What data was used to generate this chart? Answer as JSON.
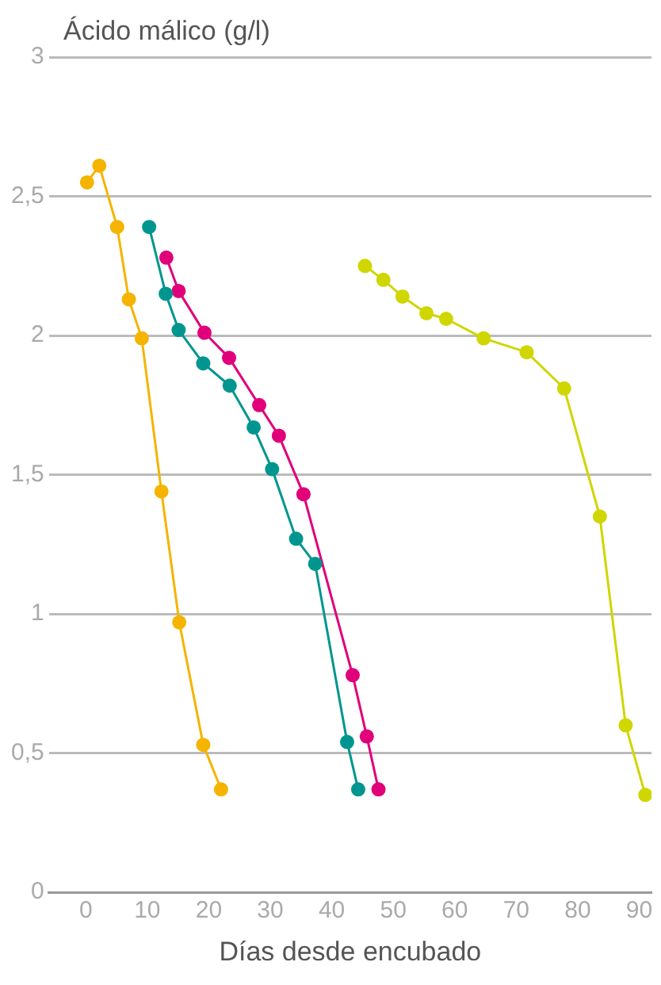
{
  "chart_data": {
    "type": "line",
    "ylabel": "Ácido málico (g/l)",
    "xlabel": "Días desde encubado",
    "xlim": [
      -6,
      92
    ],
    "xticks": [
      0,
      10,
      20,
      30,
      40,
      50,
      60,
      70,
      80,
      90
    ],
    "ylim": [
      0,
      3
    ],
    "yticks": [
      0,
      {
        "value": 0.5,
        "label": "0,5"
      },
      1,
      {
        "value": 1.5,
        "label": "1,5"
      },
      2,
      {
        "value": 2.5,
        "label": "2,5"
      },
      3
    ],
    "grid": "y",
    "legend": false,
    "marker": "circle",
    "line_style": "solid",
    "series": [
      {
        "color": "#f5b400",
        "x": [
          0.2,
          2.2,
          5.1,
          7,
          9.1,
          12.3,
          15.2,
          19.1,
          22
        ],
        "values": [
          2.55,
          2.61,
          2.39,
          2.13,
          1.99,
          1.44,
          0.97,
          0.53,
          0.37
        ]
      },
      {
        "color": "#00968f",
        "x": [
          10.3,
          13,
          15.1,
          19.1,
          23.4,
          27.3,
          30.3,
          34.2,
          37.3,
          42.5,
          44.3
        ],
        "values": [
          2.39,
          2.15,
          2.02,
          1.9,
          1.82,
          1.67,
          1.52,
          1.27,
          1.18,
          0.54,
          0.37
        ]
      },
      {
        "color": "#e0007a",
        "x": [
          13.1,
          15.1,
          19.3,
          23.3,
          28.2,
          31.4,
          35.4,
          43.4,
          45.7,
          47.6
        ],
        "values": [
          2.28,
          2.16,
          2.01,
          1.92,
          1.75,
          1.64,
          1.43,
          0.78,
          0.56,
          0.37
        ]
      },
      {
        "color": "#cfd600",
        "x": [
          45.4,
          48.4,
          51.5,
          55.4,
          58.6,
          64.7,
          71.7,
          77.8,
          83.6,
          87.8,
          91
        ],
        "values": [
          2.25,
          2.2,
          2.14,
          2.08,
          2.06,
          1.99,
          1.94,
          1.81,
          1.35,
          0.6,
          0.35
        ]
      }
    ]
  }
}
